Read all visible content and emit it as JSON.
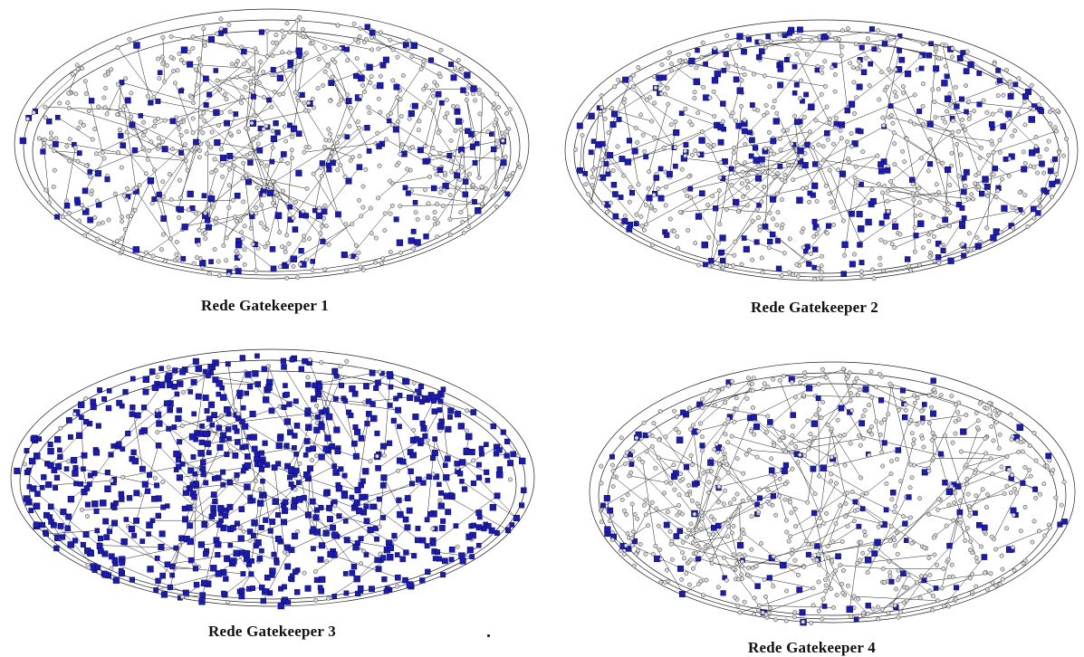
{
  "figure": {
    "panels": [
      {
        "caption": "Rede Gatekeeper 1",
        "highlight_density": 0.22,
        "seed": 11
      },
      {
        "caption": "Rede Gatekeeper 2",
        "highlight_density": 0.3,
        "seed": 23
      },
      {
        "caption": "Rede Gatekeeper 3",
        "highlight_density": 0.88,
        "seed": 37
      },
      {
        "caption": "Rede Gatekeeper 4",
        "highlight_density": 0.16,
        "seed": 51
      }
    ],
    "colors": {
      "gatekeeper_node": "#1a1ab8",
      "gatekeeper_stroke": "#0a0a55",
      "regular_node_fill": "#d8d8d8",
      "regular_node_stroke": "#333333",
      "edge": "#222222"
    },
    "legend_shapes": {
      "gatekeeper": "blue square",
      "other": "grey circle"
    }
  }
}
